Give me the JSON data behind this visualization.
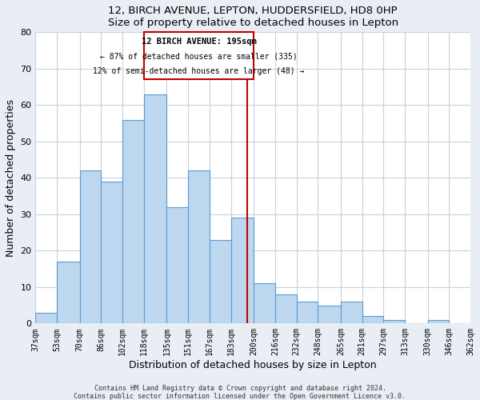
{
  "title1": "12, BIRCH AVENUE, LEPTON, HUDDERSFIELD, HD8 0HP",
  "title2": "Size of property relative to detached houses in Lepton",
  "xlabel": "Distribution of detached houses by size in Lepton",
  "ylabel": "Number of detached properties",
  "bar_edges": [
    37,
    53,
    70,
    86,
    102,
    118,
    135,
    151,
    167,
    183,
    200,
    216,
    232,
    248,
    265,
    281,
    297,
    313,
    330,
    346,
    362
  ],
  "bar_heights": [
    3,
    17,
    42,
    39,
    56,
    63,
    32,
    42,
    23,
    29,
    11,
    8,
    6,
    5,
    6,
    2,
    1,
    0,
    1,
    0
  ],
  "bar_color": "#bdd7ee",
  "bar_edge_color": "#5b9bd5",
  "vline_x": 195,
  "vline_color": "#c00000",
  "ylim": [
    0,
    80
  ],
  "annotation_line1": "12 BIRCH AVENUE: 195sqm",
  "annotation_line2": "← 87% of detached houses are smaller (335)",
  "annotation_line3": "12% of semi-detached houses are larger (48) →",
  "tick_labels": [
    "37sqm",
    "53sqm",
    "70sqm",
    "86sqm",
    "102sqm",
    "118sqm",
    "135sqm",
    "151sqm",
    "167sqm",
    "183sqm",
    "200sqm",
    "216sqm",
    "232sqm",
    "248sqm",
    "265sqm",
    "281sqm",
    "297sqm",
    "313sqm",
    "330sqm",
    "346sqm",
    "362sqm"
  ],
  "footer1": "Contains HM Land Registry data © Crown copyright and database right 2024.",
  "footer2": "Contains public sector information licensed under the Open Government Licence v3.0.",
  "bg_color": "#e8eef4",
  "plot_bg_color": "#ffffff",
  "grid_color": "#c8d4dc"
}
